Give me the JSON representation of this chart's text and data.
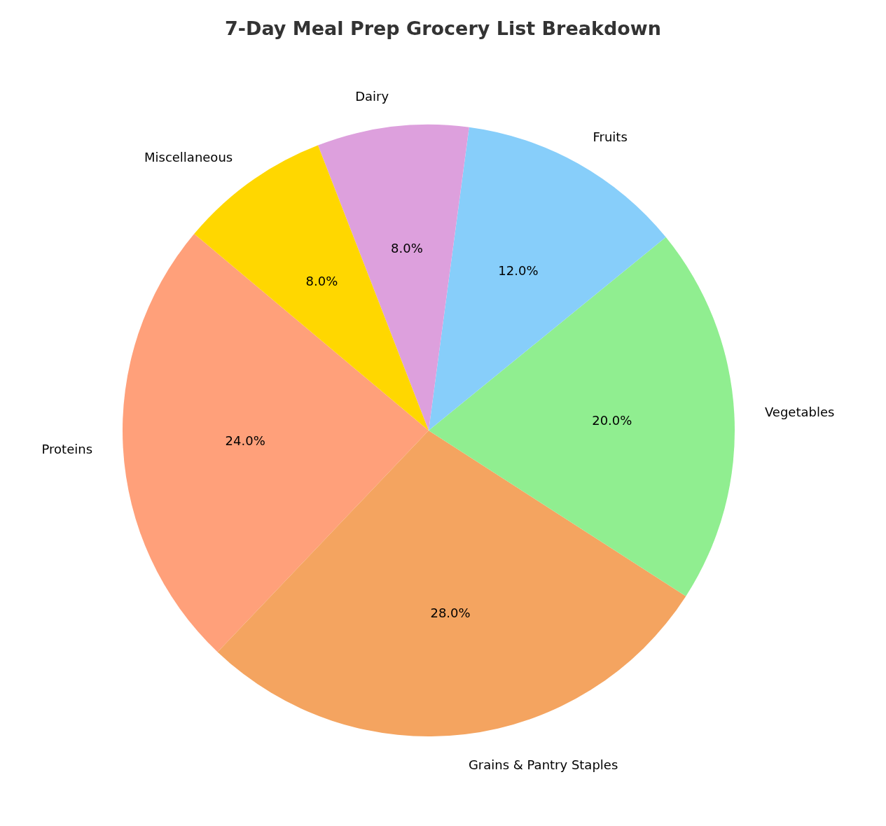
{
  "chart_data": {
    "type": "pie",
    "title": "7-Day Meal Prep Grocery List Breakdown",
    "categories": [
      "Proteins",
      "Grains & Pantry Staples",
      "Vegetables",
      "Fruits",
      "Dairy",
      "Miscellaneous"
    ],
    "values": [
      24,
      28,
      20,
      12,
      8,
      8
    ],
    "colors": [
      "#ffa07a",
      "#f4a460",
      "#90ee90",
      "#87cefa",
      "#dda0dd",
      "#ffd700"
    ],
    "value_labels": [
      "24.0%",
      "28.0%",
      "20.0%",
      "12.0%",
      "8.0%",
      "8.0%"
    ],
    "legend": false
  }
}
